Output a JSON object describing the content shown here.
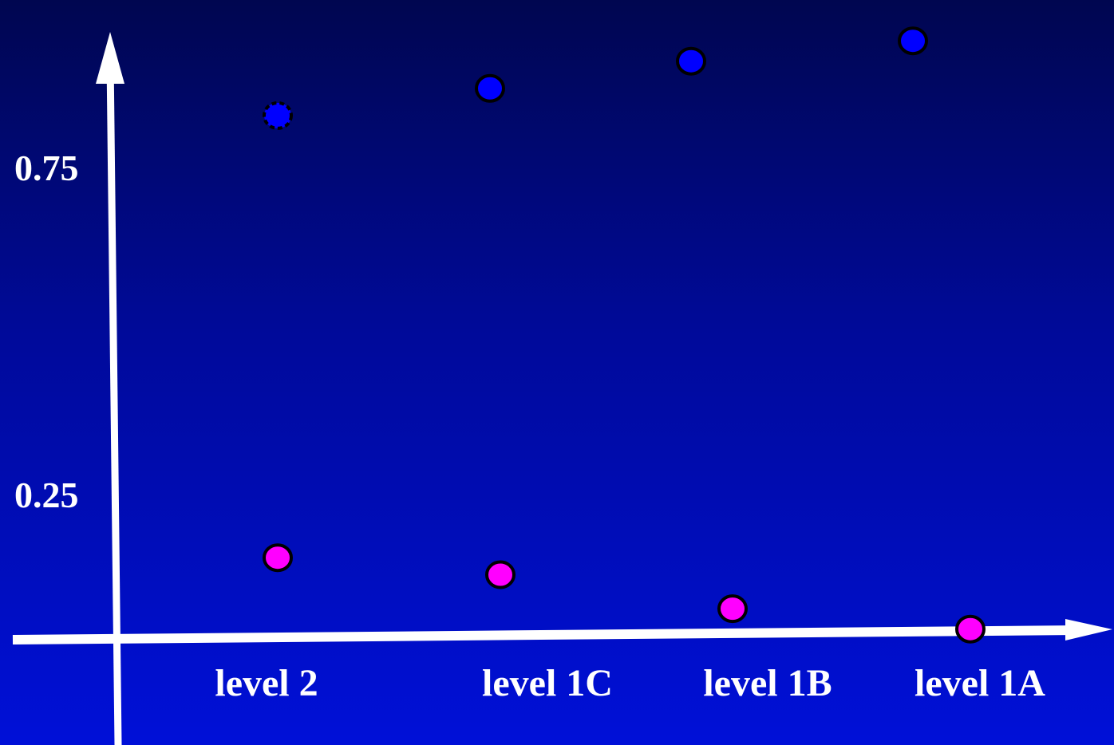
{
  "chart_data": {
    "type": "scatter",
    "categories": [
      "level 2",
      "level 1C",
      "level 1B",
      "level 1A"
    ],
    "yticks": [
      "0.75",
      "0.25"
    ],
    "ylim": [
      0.05,
      1.0
    ],
    "grid": false,
    "series": [
      {
        "color": "#0000ff",
        "values": [
          0.83,
          0.87,
          0.91,
          0.94
        ]
      },
      {
        "color": "#ff00ff",
        "values": [
          0.18,
          0.155,
          0.105,
          0.075
        ]
      }
    ]
  }
}
